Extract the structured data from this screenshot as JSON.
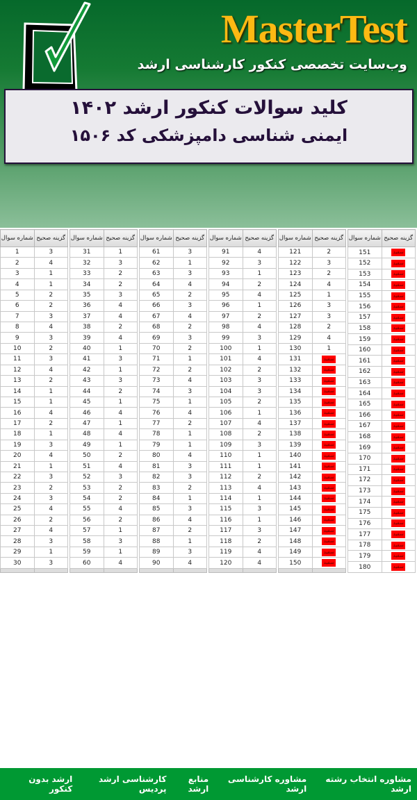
{
  "header": {
    "brand": "MasterTest",
    "tagline": "وب‌سایت تخصصی کنکور کارشناسی ارشد",
    "title": "کلید سوالات کنکور ارشد ۱۴۰۲",
    "subtitle": "ایمنی شناسی دامپزشکی کد ۱۵۰۶",
    "logo_icon": "checkbox-checkmark-icon",
    "brand_color": "#fdb913"
  },
  "table_headers": {
    "number": "شماره سوال",
    "answer": "گزینه صحیح"
  },
  "blank_label": "سفید",
  "blank_color": "#ff0000",
  "answers": [
    [
      3,
      4,
      1,
      1,
      2,
      2,
      3,
      4,
      3,
      2,
      3,
      4,
      2,
      1,
      1,
      4,
      2,
      1,
      3,
      4,
      1,
      3,
      2,
      3,
      4,
      2,
      4,
      3,
      1,
      3
    ],
    [
      1,
      3,
      2,
      2,
      3,
      4,
      4,
      2,
      4,
      1,
      3,
      1,
      3,
      2,
      1,
      4,
      1,
      4,
      1,
      2,
      4,
      3,
      2,
      2,
      4,
      2,
      1,
      3,
      1,
      4
    ],
    [
      3,
      1,
      3,
      4,
      2,
      3,
      4,
      2,
      3,
      2,
      1,
      2,
      4,
      3,
      1,
      4,
      2,
      1,
      1,
      4,
      3,
      3,
      2,
      1,
      3,
      4,
      2,
      1,
      3,
      4
    ],
    [
      4,
      3,
      1,
      2,
      4,
      1,
      2,
      4,
      3,
      1,
      4,
      2,
      3,
      3,
      2,
      1,
      4,
      2,
      3,
      1,
      1,
      2,
      4,
      1,
      3,
      1,
      3,
      2,
      4,
      4
    ],
    [
      2,
      3,
      2,
      4,
      1,
      3,
      3,
      2,
      4,
      1,
      "سفید",
      "سفید",
      "سفید",
      "سفید",
      "سفید",
      "سفید",
      "سفید",
      "سفید",
      "سفید",
      "سفید",
      "سفید",
      "سفید",
      "سفید",
      "سفید",
      "سفید",
      "سفید",
      "سفید",
      "سفید",
      "سفید",
      "سفید"
    ],
    [
      "سفید",
      "سفید",
      "سفید",
      "سفید",
      "سفید",
      "سفید",
      "سفید",
      "سفید",
      "سفید",
      "سفید",
      "سفید",
      "سفید",
      "سفید",
      "سفید",
      "سفید",
      "سفید",
      "سفید",
      "سفید",
      "سفید",
      "سفید",
      "سفید",
      "سفید",
      "سفید",
      "سفید",
      "سفید",
      "سفید",
      "سفید",
      "سفید",
      "سفید",
      "سفید"
    ]
  ],
  "footer": {
    "links": [
      "ارشد بدون کنکور",
      "کارشناسی ارشد پردیس",
      "منابع ارشد",
      "مشاوره کارشناسی ارشد",
      "مشاوره انتخاب رشته ارشد"
    ]
  }
}
